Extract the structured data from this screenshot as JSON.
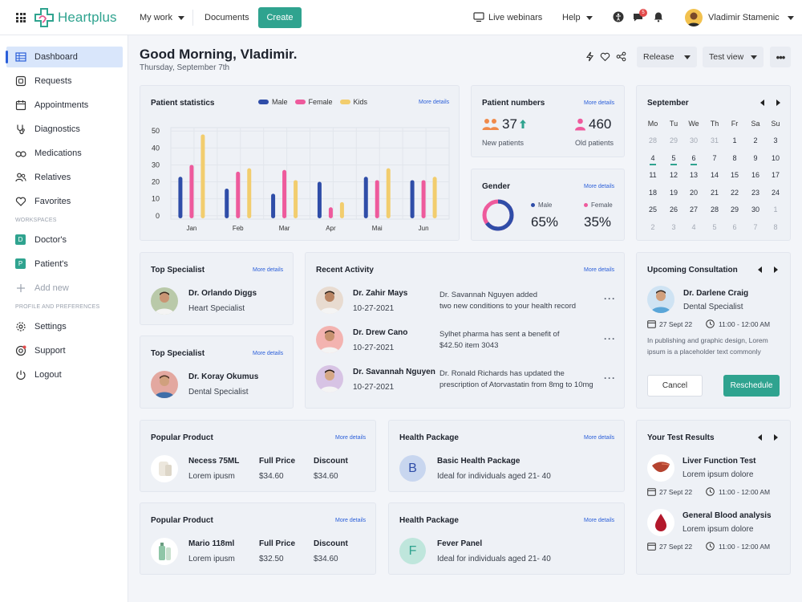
{
  "app": {
    "name": "Heartplus"
  },
  "topbar": {
    "my_work": "My work",
    "documents": "Documents",
    "create": "Create",
    "live_webinars": "Live webinars",
    "help": "Help",
    "notif_count": "5",
    "user_name": "Vladimir Stamenic"
  },
  "sidebar": {
    "items": [
      {
        "label": "Dashboard",
        "icon": "table-icon"
      },
      {
        "label": "Requests",
        "icon": "inbox-icon"
      },
      {
        "label": "Appointments",
        "icon": "calendar-icon"
      },
      {
        "label": "Diagnostics",
        "icon": "stethoscope-icon"
      },
      {
        "label": "Medications",
        "icon": "pills-icon"
      },
      {
        "label": "Relatives",
        "icon": "users-icon"
      },
      {
        "label": "Favorites",
        "icon": "heart-icon"
      }
    ],
    "workspaces_title": "WORKSPACES",
    "workspaces": [
      {
        "letter": "D",
        "label": "Doctor's"
      },
      {
        "letter": "P",
        "label": "Patient's"
      }
    ],
    "add_new": "Add new",
    "prefs_title": "PROFILE AND PREFERENCES",
    "prefs": [
      {
        "label": "Settings",
        "icon": "gear-icon"
      },
      {
        "label": "Support",
        "icon": "support-icon"
      },
      {
        "label": "Logout",
        "icon": "power-icon"
      }
    ]
  },
  "header": {
    "greeting": "Good Morning, Vladimir.",
    "date": "Thursday, September 7th",
    "release": "Release",
    "test_view": "Test view",
    "more": "•••"
  },
  "common": {
    "more_details": "More details"
  },
  "patient_stats": {
    "title": "Patient statistics",
    "legend": [
      "Male",
      "Female",
      "Kids"
    ]
  },
  "chart_data": {
    "type": "bar",
    "categories": [
      "Jan",
      "Feb",
      "Mar",
      "Apr",
      "Mai",
      "Jun"
    ],
    "series": [
      {
        "name": "Male",
        "values": [
          23,
          16,
          13,
          20,
          23,
          21
        ],
        "color": "#2f4da8"
      },
      {
        "name": "Female",
        "values": [
          30,
          26,
          27,
          5,
          21,
          21
        ],
        "color": "#ee5a9c"
      },
      {
        "name": "Kids",
        "values": [
          48,
          28,
          21,
          8,
          28,
          23
        ],
        "color": "#f2cd6e"
      }
    ],
    "yticks": [
      0,
      10,
      20,
      30,
      40,
      50
    ],
    "ylim": [
      -2,
      52
    ],
    "title": "Patient statistics",
    "legend": "top",
    "grid": true
  },
  "patient_numbers": {
    "title": "Patient numbers",
    "new_value": "37",
    "new_label": "New patients",
    "old_value": "460",
    "old_label": "Old patients"
  },
  "gender": {
    "title": "Gender",
    "male_label": "Male",
    "male_value": "65%",
    "female_label": "Female",
    "female_value": "35%",
    "male_fraction": 0.65
  },
  "calendar": {
    "month": "September",
    "weekdays": [
      "Mo",
      "Tu",
      "We",
      "Th",
      "Fr",
      "Sa",
      "Su"
    ],
    "rows": [
      [
        "28",
        "29",
        "30",
        "31",
        "1",
        "2",
        "3"
      ],
      [
        "4",
        "5",
        "6",
        "7",
        "8",
        "9",
        "10"
      ],
      [
        "11",
        "12",
        "13",
        "14",
        "15",
        "16",
        "17"
      ],
      [
        "18",
        "19",
        "20",
        "21",
        "22",
        "23",
        "24"
      ],
      [
        "25",
        "26",
        "27",
        "28",
        "29",
        "30",
        "1"
      ],
      [
        "2",
        "3",
        "4",
        "5",
        "6",
        "7",
        "8"
      ]
    ]
  },
  "top_specialists": [
    {
      "title": "Top Specialist",
      "name": "Dr. Orlando Diggs",
      "role": "Heart Specialist"
    },
    {
      "title": "Top Specialist",
      "name": "Dr. Koray Okumus",
      "role": "Dental Specialist"
    }
  ],
  "recent_activity": {
    "title": "Recent Activity",
    "items": [
      {
        "name": "Dr. Zahir Mays",
        "date": "10-27-2021",
        "line1": "Dr. Savannah Nguyen added",
        "line2": "two new conditions to your health record"
      },
      {
        "name": "Dr. Drew Cano",
        "date": "10-27-2021",
        "line1": "Sylhet pharma has sent a benefit of",
        "line2": "$42.50 item 3043"
      },
      {
        "name": "Dr. Savannah Nguyen",
        "date": "10-27-2021",
        "line1": "Dr. Ronald Richards has updated the",
        "line2": "prescription of Atorvastatin from 8mg to 10mg"
      }
    ]
  },
  "consultation": {
    "title": "Upcoming Consultation",
    "name": "Dr. Darlene Craig",
    "role": "Dental Specialist",
    "date": "27 Sept 22",
    "time": "11:00 - 12:00 AM",
    "desc1": "In publishing and graphic design, Lorem",
    "desc2": "ipsum is a placeholder text commonly",
    "cancel": "Cancel",
    "reschedule": "Reschedule"
  },
  "products": [
    {
      "title": "Popular Product",
      "name": "Necess 75ML",
      "sub": "Lorem ipusm",
      "price_label": "Full Price",
      "price": "$34.60",
      "discount_label": "Discount",
      "discount": "$34.60"
    },
    {
      "title": "Popular Product",
      "name": "Mario 118ml",
      "sub": "Lorem ipusm",
      "price_label": "Full Price",
      "price": "$32.50",
      "discount_label": "Discount",
      "discount": "$34.60"
    }
  ],
  "packages": [
    {
      "title": "Health Package",
      "letter": "B",
      "name": "Basic Health Package",
      "sub": "Ideal for individuals aged 21- 40"
    },
    {
      "title": "Health Package",
      "letter": "F",
      "name": "Fever Panel",
      "sub": "Ideal for individuals aged 21- 40"
    }
  ],
  "test_results": {
    "title": "Your Test Results",
    "items": [
      {
        "name": "Liver Function Test",
        "sub": "Lorem ipsum dolore",
        "date": "27 Sept 22",
        "time": "11:00 - 12:00 AM",
        "icon": "liver-icon"
      },
      {
        "name": "General Blood analysis",
        "sub": "Lorem ipsum dolore",
        "date": "27 Sept 22",
        "time": "11:00 - 12:00 AM",
        "icon": "blood-drop-icon"
      }
    ]
  },
  "colors": {
    "accent": "#2fa38f",
    "primary": "#2b5fd9",
    "male": "#2f4da8",
    "female": "#ee5a9c",
    "kids": "#f2cd6e"
  }
}
